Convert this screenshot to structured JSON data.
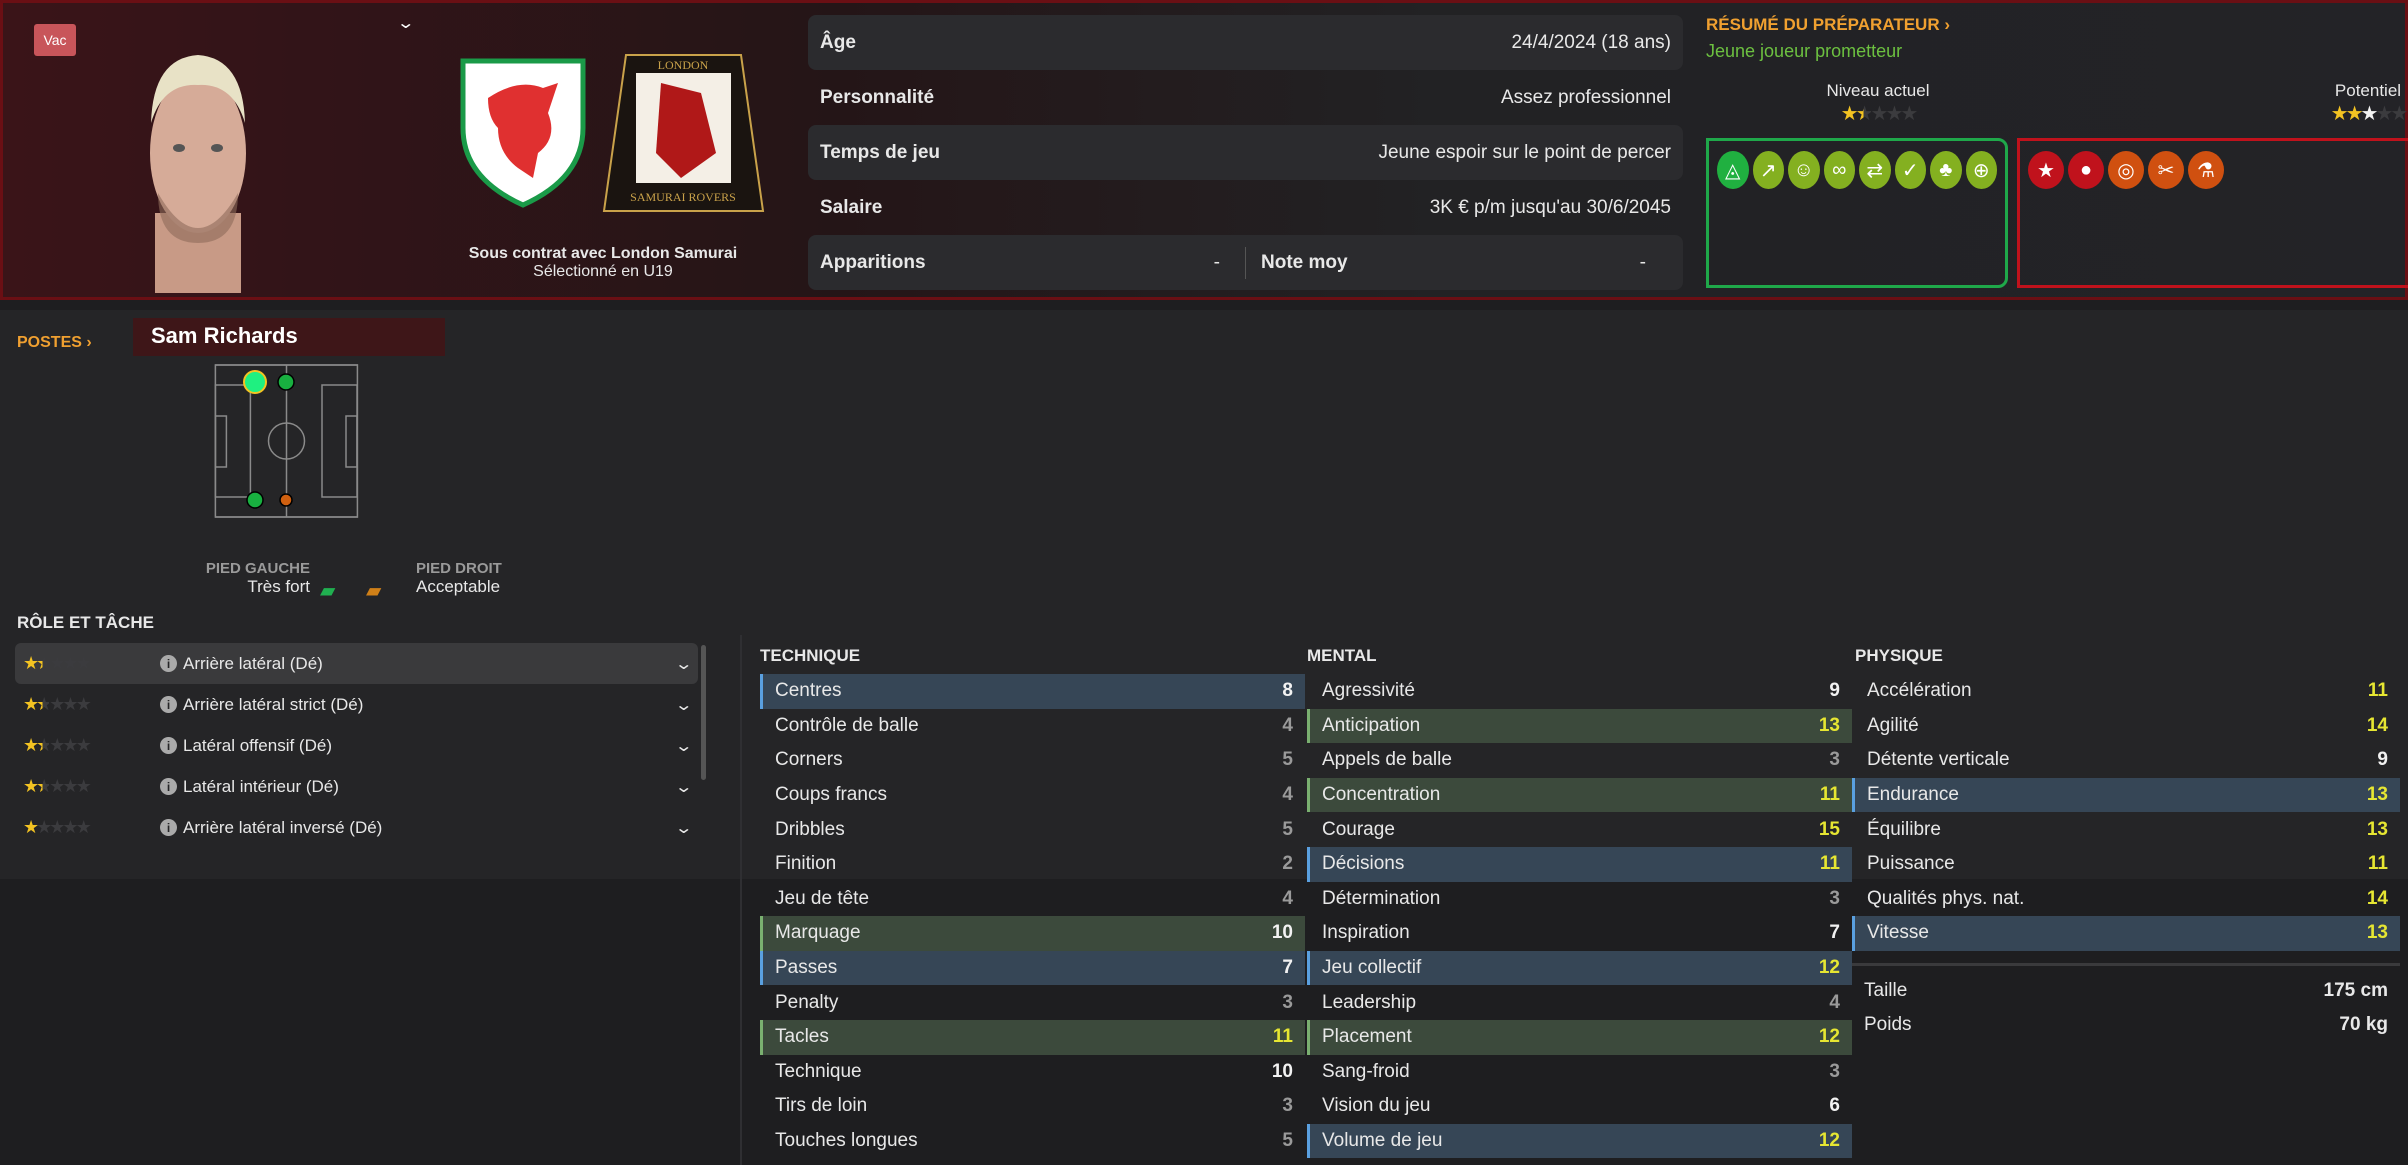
{
  "header": {
    "badge": "Vac",
    "contract_line": "Sous contrat avec London Samurai",
    "selection_line": "Sélectionné en U19",
    "club_crest_text": "LONDON SAMURAI ROVERS"
  },
  "info": {
    "age_label": "Âge",
    "age_value": "24/4/2024 (18 ans)",
    "personality_label": "Personnalité",
    "personality_value": "Assez professionnel",
    "playtime_label": "Temps de jeu",
    "playtime_value": "Jeune espoir sur le point de percer",
    "salary_label": "Salaire",
    "salary_value": "3K € p/m jusqu'au 30/6/2045",
    "apps_label": "Apparitions",
    "apps_value": "-",
    "rating_label": "Note moy",
    "rating_value": "-"
  },
  "report": {
    "title": "RÉSUMÉ DU PRÉPARATEUR ›",
    "summary": "Jeune joueur prometteur",
    "current_label": "Niveau actuel",
    "current_stars": 1.5,
    "potential_label": "Potentiel",
    "potential_stars": 2.5,
    "strengths": [
      {
        "icon": "shield-icon"
      },
      {
        "icon": "trend-up-icon"
      },
      {
        "icon": "head-brain-icon"
      },
      {
        "icon": "chain-link-icon"
      },
      {
        "icon": "handshake-icon"
      },
      {
        "icon": "document-check-icon"
      },
      {
        "icon": "plant-growth-icon"
      },
      {
        "icon": "globe-icon"
      }
    ],
    "weaknesses": [
      {
        "icon": "star-icon"
      },
      {
        "icon": "ball-slope-icon"
      },
      {
        "icon": "target-icon"
      },
      {
        "icon": "broken-link-icon"
      },
      {
        "icon": "flask-icon"
      }
    ],
    "colors": {
      "strength": "#1fa84a",
      "weakness": "#c0121c",
      "accent": "#f0a030"
    }
  },
  "positions": {
    "title": "POSTES ›",
    "player_name": "Sam Richards",
    "left_foot_label": "PIED GAUCHE",
    "left_foot_value": "Très fort",
    "right_foot_label": "PIED DROIT",
    "right_foot_value": "Acceptable"
  },
  "roles": {
    "title": "RÔLE ET TÂCHE",
    "items": [
      {
        "label": "Arrière latéral (Dé)",
        "stars": 1.5,
        "selected": true
      },
      {
        "label": "Arrière latéral strict (Dé)",
        "stars": 1.5
      },
      {
        "label": "Latéral offensif (Dé)",
        "stars": 1.5
      },
      {
        "label": "Latéral intérieur (Dé)",
        "stars": 1.5
      },
      {
        "label": "Arrière latéral inversé (Dé)",
        "stars": 1
      }
    ]
  },
  "attributes": {
    "technique": {
      "title": "TECHNIQUE",
      "items": [
        {
          "name": "Centres",
          "value": 8,
          "hl": "b"
        },
        {
          "name": "Contrôle de balle",
          "value": 4
        },
        {
          "name": "Corners",
          "value": 5
        },
        {
          "name": "Coups francs",
          "value": 4
        },
        {
          "name": "Dribbles",
          "value": 5
        },
        {
          "name": "Finition",
          "value": 2
        },
        {
          "name": "Jeu de tête",
          "value": 4
        },
        {
          "name": "Marquage",
          "value": 10,
          "hl": "g"
        },
        {
          "name": "Passes",
          "value": 7,
          "hl": "b"
        },
        {
          "name": "Penalty",
          "value": 3
        },
        {
          "name": "Tacles",
          "value": 11,
          "hl": "g"
        },
        {
          "name": "Technique",
          "value": 10
        },
        {
          "name": "Tirs de loin",
          "value": 3
        },
        {
          "name": "Touches longues",
          "value": 5
        }
      ]
    },
    "mental": {
      "title": "MENTAL",
      "items": [
        {
          "name": "Agressivité",
          "value": 9
        },
        {
          "name": "Anticipation",
          "value": 13,
          "hl": "g"
        },
        {
          "name": "Appels de balle",
          "value": 3
        },
        {
          "name": "Concentration",
          "value": 11,
          "hl": "g"
        },
        {
          "name": "Courage",
          "value": 15
        },
        {
          "name": "Décisions",
          "value": 11,
          "hl": "b"
        },
        {
          "name": "Détermination",
          "value": 3
        },
        {
          "name": "Inspiration",
          "value": 7
        },
        {
          "name": "Jeu collectif",
          "value": 12,
          "hl": "b"
        },
        {
          "name": "Leadership",
          "value": 4
        },
        {
          "name": "Placement",
          "value": 12,
          "hl": "g"
        },
        {
          "name": "Sang-froid",
          "value": 3
        },
        {
          "name": "Vision du jeu",
          "value": 6
        },
        {
          "name": "Volume de jeu",
          "value": 12,
          "hl": "b"
        }
      ]
    },
    "physique": {
      "title": "PHYSIQUE",
      "items": [
        {
          "name": "Accélération",
          "value": 11
        },
        {
          "name": "Agilité",
          "value": 14
        },
        {
          "name": "Détente verticale",
          "value": 9
        },
        {
          "name": "Endurance",
          "value": 13,
          "hl": "b"
        },
        {
          "name": "Équilibre",
          "value": 13
        },
        {
          "name": "Puissance",
          "value": 11
        },
        {
          "name": "Qualités phys. nat.",
          "value": 14
        },
        {
          "name": "Vitesse",
          "value": 13,
          "hl": "b"
        }
      ]
    },
    "height_label": "Taille",
    "height_value": "175 cm",
    "weight_label": "Poids",
    "weight_value": "70 kg"
  }
}
